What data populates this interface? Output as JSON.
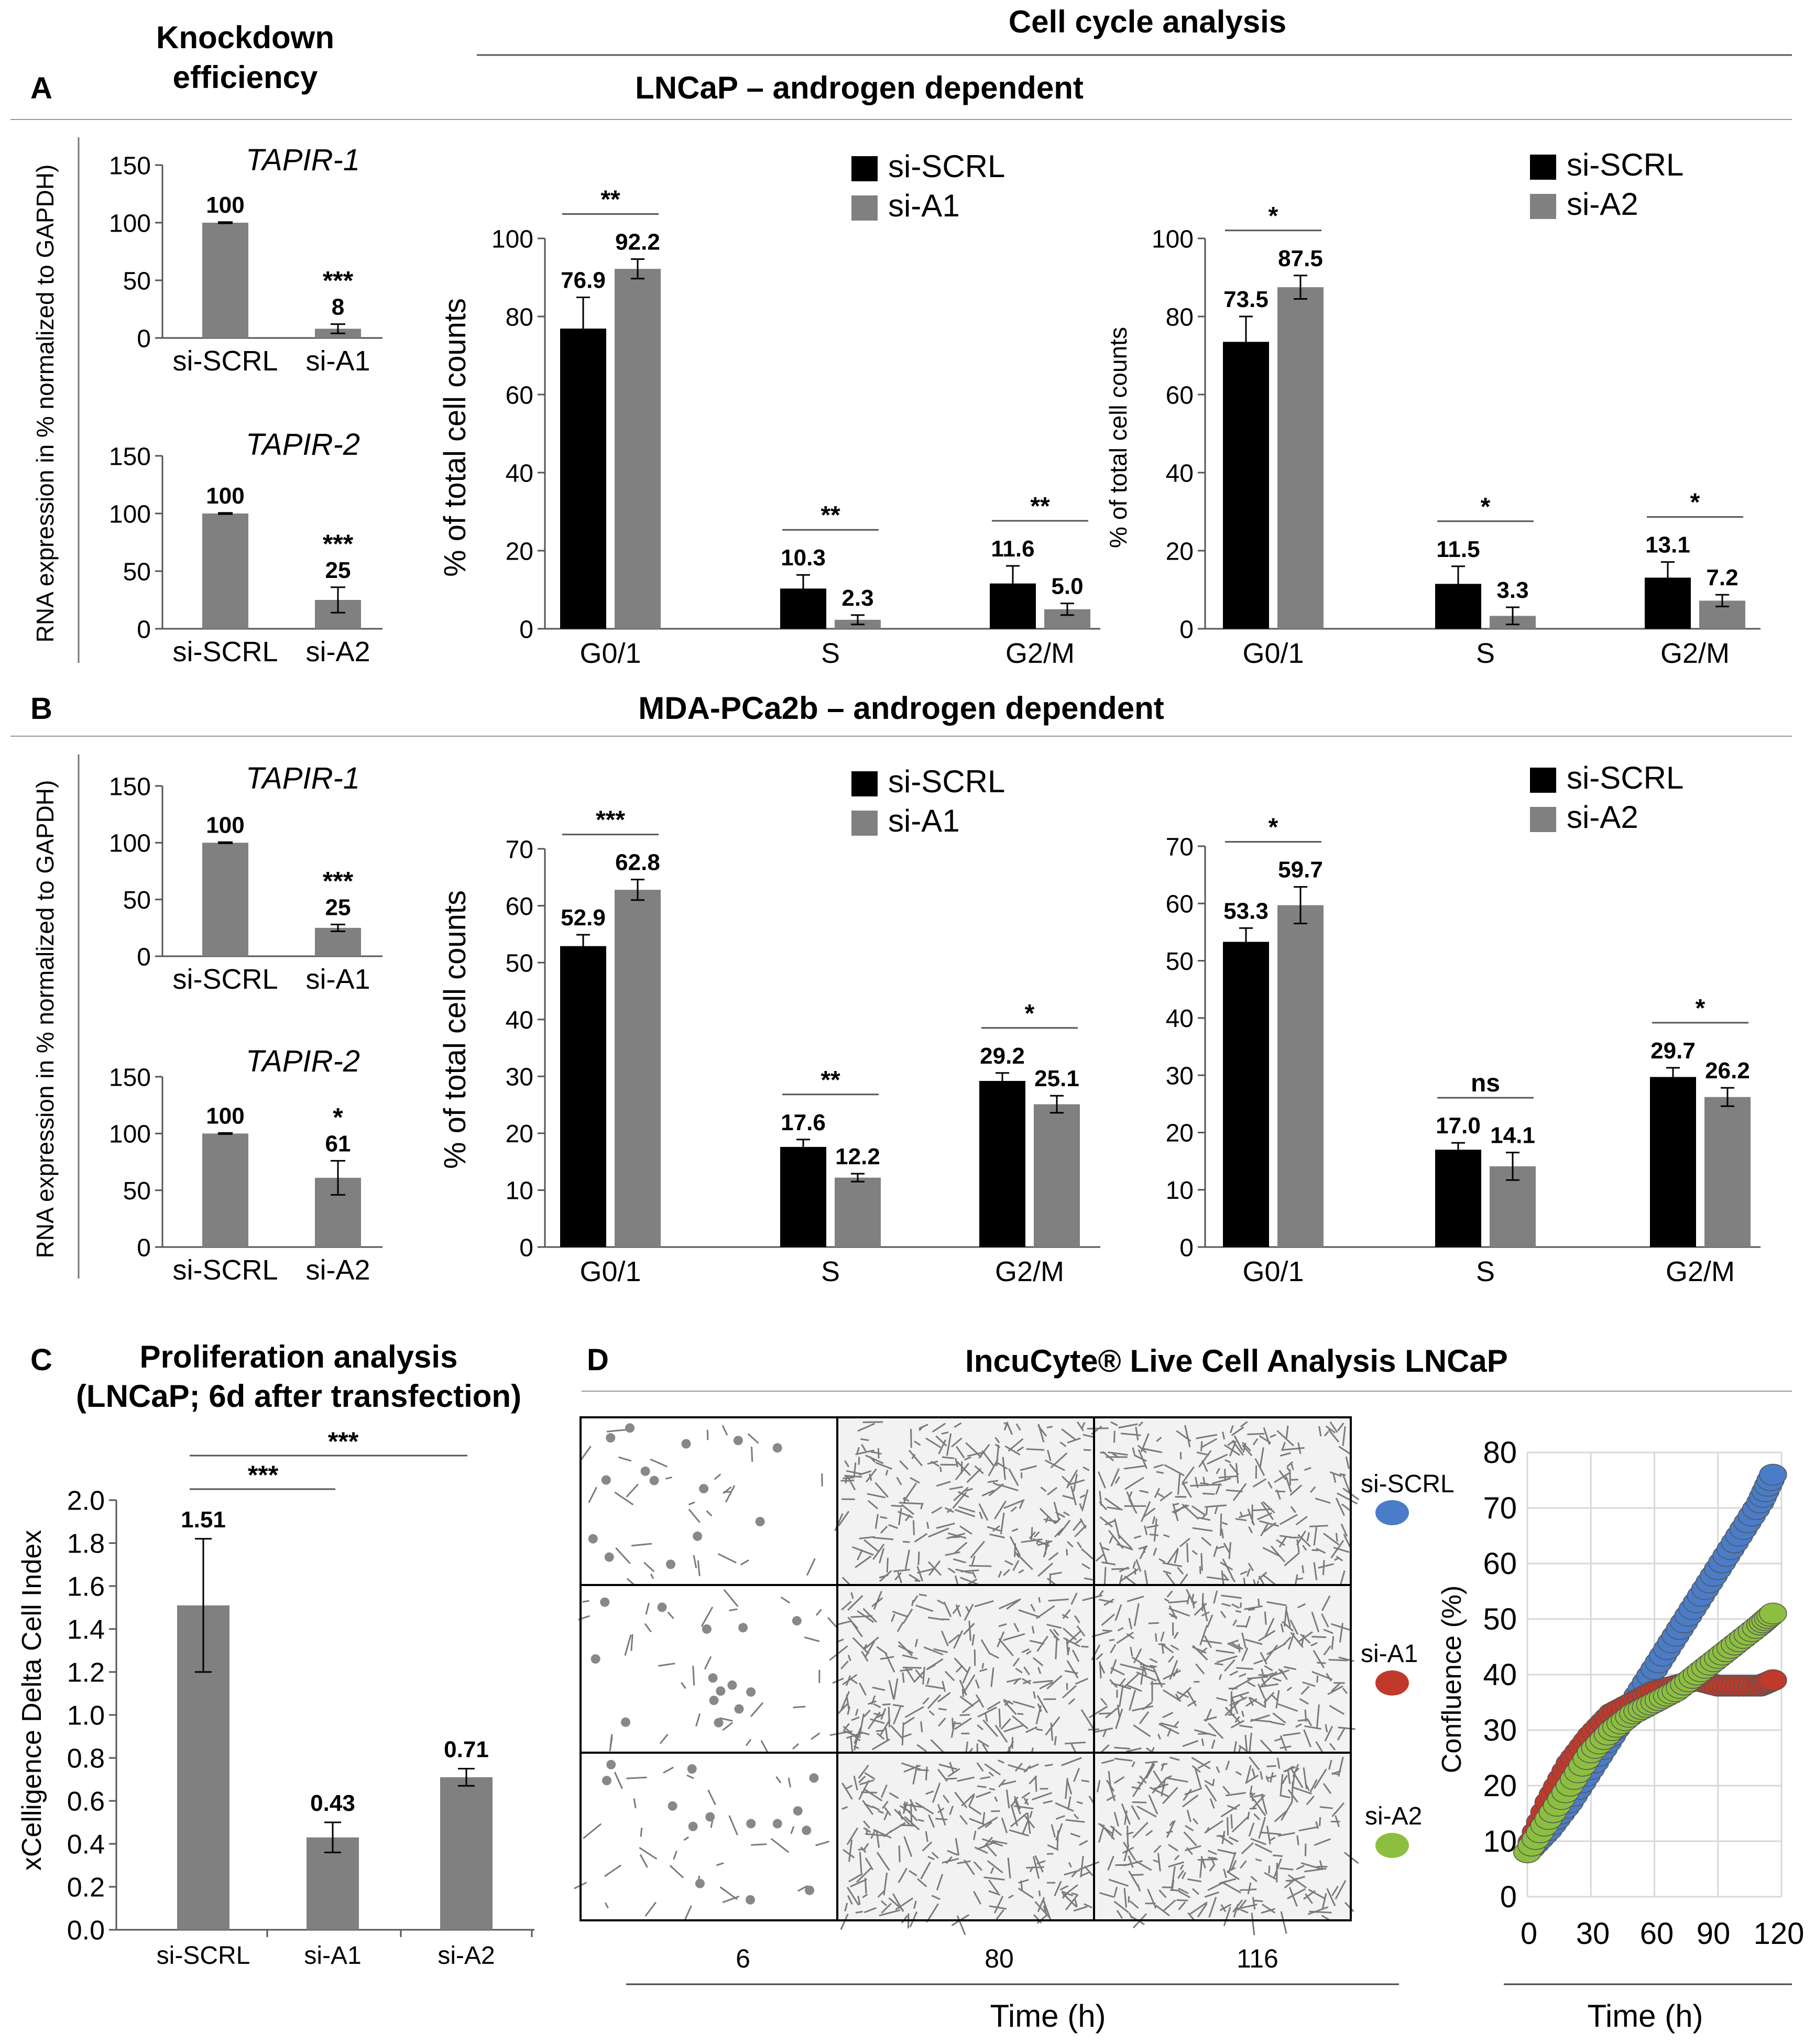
{
  "colors": {
    "scrl": "#000000",
    "treated": "#808080",
    "kd": "#808080",
    "curve_scrl": "#4a7cc8",
    "curve_a1": "#c0392b",
    "curve_a2": "#8cbf3f",
    "axis": "#555555"
  },
  "headers": {
    "knockdown_line1": "Knockdown",
    "knockdown_line2": "efficiency",
    "cell_cycle": "Cell cycle analysis",
    "panel_a": "A",
    "panel_a_title": "LNCaP – androgen dependent",
    "panel_b": "B",
    "panel_b_title": "MDA-PCa2b – androgen dependent",
    "panel_c": "C",
    "panel_c_line1": "Proliferation analysis",
    "panel_c_line2": "(LNCaP; 6d after transfection)",
    "panel_d": "D",
    "panel_d_title": "IncuCyte® Live Cell Analysis LNCaP"
  },
  "knockdown_ylabel": "RNA expression in % normalized to GAPDH)",
  "cellcycle_ylabel": "% of total  cell counts",
  "chart_data": [
    {
      "id": "kd_a1",
      "type": "bar",
      "title": "TAPIR-1",
      "categories": [
        "si-SCRL",
        "si-A1"
      ],
      "values": [
        100,
        8
      ],
      "errors": [
        0.5,
        4
      ],
      "value_labels": [
        "100",
        "8"
      ],
      "sig": [
        "",
        "***"
      ],
      "yticks": [
        "0",
        "50",
        "100",
        "150"
      ],
      "ylim": [
        0,
        150
      ]
    },
    {
      "id": "kd_a2",
      "type": "bar",
      "title": "TAPIR-2",
      "categories": [
        "si-SCRL",
        "si-A2"
      ],
      "values": [
        100,
        25
      ],
      "errors": [
        0.5,
        11
      ],
      "value_labels": [
        "100",
        "25"
      ],
      "sig": [
        "",
        "***"
      ],
      "yticks": [
        "0",
        "50",
        "100",
        "150"
      ],
      "ylim": [
        0,
        150
      ]
    },
    {
      "id": "kd_b1",
      "type": "bar",
      "title": "TAPIR-1",
      "categories": [
        "si-SCRL",
        "si-A1"
      ],
      "values": [
        100,
        25
      ],
      "errors": [
        0.5,
        3
      ],
      "value_labels": [
        "100",
        "25"
      ],
      "sig": [
        "",
        "***"
      ],
      "yticks": [
        "0",
        "50",
        "100",
        "150"
      ],
      "ylim": [
        0,
        150
      ]
    },
    {
      "id": "kd_b2",
      "type": "bar",
      "title": "TAPIR-2",
      "categories": [
        "si-SCRL",
        "si-A2"
      ],
      "values": [
        100,
        61
      ],
      "errors": [
        0.5,
        15
      ],
      "value_labels": [
        "100",
        "61"
      ],
      "sig": [
        "",
        "*"
      ],
      "yticks": [
        "0",
        "50",
        "100",
        "150"
      ],
      "ylim": [
        0,
        150
      ]
    },
    {
      "id": "cc_a1",
      "type": "bar",
      "categories": [
        "G0/1",
        "S",
        "G2/M"
      ],
      "legend": [
        "si-SCRL",
        "si-A1"
      ],
      "series": [
        {
          "name": "si-SCRL",
          "values": [
            76.9,
            10.3,
            11.6
          ],
          "errors": [
            8,
            3.5,
            4.5
          ],
          "labels": [
            "76.9",
            "10.3",
            "11.6"
          ]
        },
        {
          "name": "si-A1",
          "values": [
            92.2,
            2.3,
            5.0
          ],
          "errors": [
            2.5,
            1.2,
            1.5
          ],
          "labels": [
            "92.2",
            "2.3",
            "5.0"
          ]
        }
      ],
      "sig": [
        "**",
        "**",
        "**"
      ],
      "yticks": [
        "0",
        "20",
        "40",
        "60",
        "80",
        "100"
      ],
      "ylim": [
        0,
        100
      ]
    },
    {
      "id": "cc_a2",
      "type": "bar",
      "categories": [
        "G0/1",
        "S",
        "G2/M"
      ],
      "legend": [
        "si-SCRL",
        "si-A2"
      ],
      "series": [
        {
          "name": "si-SCRL",
          "values": [
            73.5,
            11.5,
            13.1
          ],
          "errors": [
            6.5,
            4.5,
            4
          ],
          "labels": [
            "73.5",
            "11.5",
            "13.1"
          ]
        },
        {
          "name": "si-A2",
          "values": [
            87.5,
            3.3,
            7.2
          ],
          "errors": [
            3,
            2.2,
            1.5
          ],
          "labels": [
            "87.5",
            "3.3",
            "7.2"
          ]
        }
      ],
      "sig": [
        "*",
        "*",
        "*"
      ],
      "yticks": [
        "0",
        "20",
        "40",
        "60",
        "80",
        "100"
      ],
      "ylim": [
        0,
        100
      ]
    },
    {
      "id": "cc_b1",
      "type": "bar",
      "categories": [
        "G0/1",
        "S",
        "G2/M"
      ],
      "legend": [
        "si-SCRL",
        "si-A1"
      ],
      "series": [
        {
          "name": "si-SCRL",
          "values": [
            52.9,
            17.6,
            29.2
          ],
          "errors": [
            2,
            1.3,
            1.4
          ],
          "labels": [
            "52.9",
            "17.6",
            "29.2"
          ]
        },
        {
          "name": "si-A1",
          "values": [
            62.8,
            12.2,
            25.1
          ],
          "errors": [
            1.8,
            0.7,
            1.5
          ],
          "labels": [
            "62.8",
            "12.2",
            "25.1"
          ]
        }
      ],
      "sig": [
        "***",
        "**",
        "*"
      ],
      "yticks": [
        "0",
        "10",
        "20",
        "30",
        "40",
        "50",
        "60",
        "70"
      ],
      "ylim": [
        0,
        70
      ]
    },
    {
      "id": "cc_b2",
      "type": "bar",
      "categories": [
        "G0/1",
        "S",
        "G2/M"
      ],
      "legend": [
        "si-SCRL",
        "si-A2"
      ],
      "series": [
        {
          "name": "si-SCRL",
          "values": [
            53.3,
            17.0,
            29.7
          ],
          "errors": [
            2.4,
            1.2,
            1.6
          ],
          "labels": [
            "53.3",
            "17.0",
            "29.7"
          ]
        },
        {
          "name": "si-A2",
          "values": [
            59.7,
            14.1,
            26.2
          ],
          "errors": [
            3.2,
            2.4,
            1.6
          ],
          "labels": [
            "59.7",
            "14.1",
            "26.2"
          ]
        }
      ],
      "sig": [
        "*",
        "ns",
        "*"
      ],
      "yticks": [
        "0",
        "10",
        "20",
        "30",
        "40",
        "50",
        "60",
        "70"
      ],
      "ylim": [
        0,
        70
      ]
    },
    {
      "id": "prolif",
      "type": "bar",
      "ylabel": "xCelligence Delta Cell Index",
      "categories": [
        "si-SCRL",
        "si-A1",
        "si-A2"
      ],
      "values": [
        1.51,
        0.43,
        0.71
      ],
      "errors": [
        0.31,
        0.07,
        0.04
      ],
      "value_labels": [
        "1.51",
        "0.43",
        "0.71"
      ],
      "sig_brackets": [
        "***",
        "***"
      ],
      "yticks": [
        "0.0",
        "0.2",
        "0.4",
        "0.6",
        "0.8",
        "1.0",
        "1.2",
        "1.4",
        "1.6",
        "1.8",
        "2.0"
      ],
      "ylim": [
        0,
        2.0
      ]
    },
    {
      "id": "confluence",
      "type": "scatter",
      "ylabel": "Confluence (%)",
      "xlabel": "Time (h)",
      "xticks": [
        "0",
        "30",
        "60",
        "90",
        "120"
      ],
      "yticks": [
        "0",
        "10",
        "20",
        "30",
        "40",
        "50",
        "60",
        "70",
        "80"
      ],
      "xlim": [
        0,
        120
      ],
      "ylim": [
        0,
        80
      ],
      "series": [
        {
          "name": "si-SCRL",
          "x": [
            0,
            10,
            20,
            30,
            40,
            50,
            60,
            70,
            80,
            90,
            100,
            110,
            116
          ],
          "y": [
            8,
            12,
            17,
            23,
            29,
            35,
            41,
            47,
            53,
            59,
            65,
            71,
            76
          ]
        },
        {
          "name": "si-A1",
          "x": [
            0,
            10,
            20,
            30,
            40,
            50,
            60,
            70,
            80,
            90,
            100,
            110,
            116
          ],
          "y": [
            8,
            17,
            24,
            29,
            33,
            35,
            37,
            38,
            39,
            38,
            38,
            38,
            39
          ]
        },
        {
          "name": "si-A2",
          "x": [
            0,
            10,
            20,
            30,
            40,
            50,
            60,
            70,
            80,
            90,
            100,
            110,
            116
          ],
          "y": [
            8,
            14,
            20,
            26,
            30,
            33,
            35,
            37,
            40,
            43,
            46,
            49,
            51
          ]
        }
      ]
    }
  ],
  "incucyte": {
    "row_labels": [
      "si-SCRL",
      "si-A1",
      "si-A2"
    ],
    "time_labels": [
      "6",
      "80",
      "116"
    ],
    "xlabel": "Time (h)"
  }
}
